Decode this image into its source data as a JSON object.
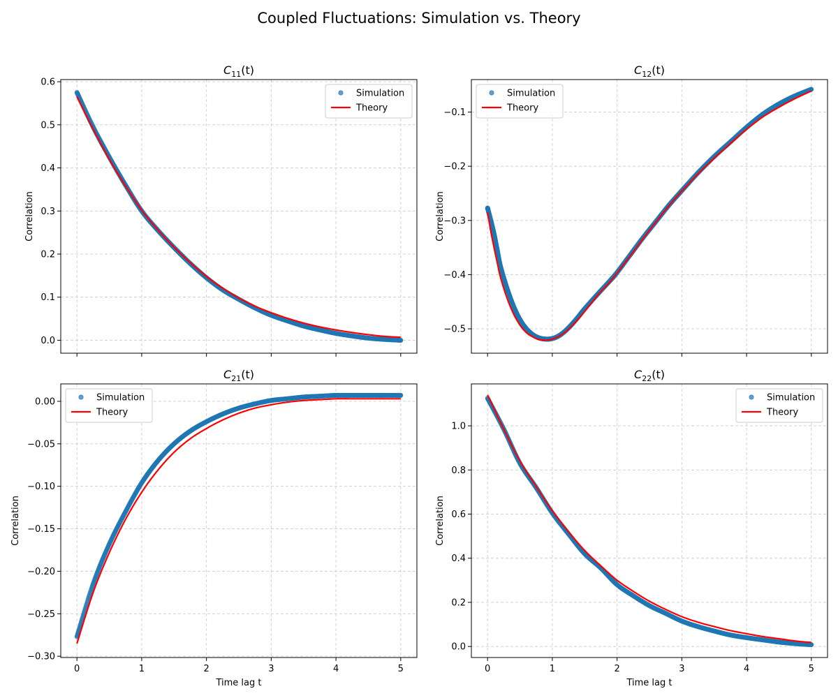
{
  "figure": {
    "title": "Coupled Fluctuations: Simulation vs. Theory"
  },
  "colors": {
    "simulation": "#1f77b4",
    "theory": "#ff0000",
    "grid": "#cccccc"
  },
  "chart_data": [
    {
      "type": "line",
      "title_main": "C",
      "title_sub": "11",
      "title_suffix": "(t)",
      "xlabel": "",
      "ylabel": "Correlation",
      "xlim": [
        -0.25,
        5.25
      ],
      "ylim": [
        -0.03,
        0.605
      ],
      "xticks": [
        0,
        1,
        2,
        3,
        4,
        5
      ],
      "yticks": [
        0.0,
        0.1,
        0.2,
        0.3,
        0.4,
        0.5,
        0.6
      ],
      "ytick_labels": [
        "0.0",
        "0.1",
        "0.2",
        "0.3",
        "0.4",
        "0.5",
        "0.6"
      ],
      "grid": true,
      "legend_position": "top-right",
      "series": [
        {
          "name": "Simulation",
          "style": "scatter",
          "x": [
            0,
            0.25,
            0.5,
            0.75,
            1.0,
            1.25,
            1.5,
            1.75,
            2.0,
            2.25,
            2.5,
            2.75,
            3.0,
            3.25,
            3.5,
            3.75,
            4.0,
            4.25,
            4.5,
            4.75,
            5.0
          ],
          "y": [
            0.575,
            0.495,
            0.425,
            0.36,
            0.3,
            0.255,
            0.215,
            0.178,
            0.145,
            0.117,
            0.095,
            0.075,
            0.058,
            0.045,
            0.033,
            0.024,
            0.016,
            0.01,
            0.005,
            0.002,
            0.0
          ]
        },
        {
          "name": "Theory",
          "style": "line",
          "x": [
            0,
            0.25,
            0.5,
            0.75,
            1.0,
            1.25,
            1.5,
            1.75,
            2.0,
            2.25,
            2.5,
            2.75,
            3.0,
            3.25,
            3.5,
            3.75,
            4.0,
            4.25,
            4.5,
            4.75,
            5.0
          ],
          "y": [
            0.565,
            0.49,
            0.42,
            0.358,
            0.302,
            0.256,
            0.216,
            0.18,
            0.148,
            0.121,
            0.098,
            0.079,
            0.064,
            0.051,
            0.04,
            0.031,
            0.024,
            0.018,
            0.013,
            0.009,
            0.007
          ]
        }
      ]
    },
    {
      "type": "line",
      "title_main": "C",
      "title_sub": "12",
      "title_suffix": "(t)",
      "xlabel": "",
      "ylabel": "Correlation",
      "xlim": [
        -0.25,
        5.25
      ],
      "ylim": [
        -0.545,
        -0.04
      ],
      "xticks": [
        0,
        1,
        2,
        3,
        4,
        5
      ],
      "yticks": [
        -0.5,
        -0.4,
        -0.3,
        -0.2,
        -0.1
      ],
      "ytick_labels": [
        "−0.5",
        "−0.4",
        "−0.3",
        "−0.2",
        "−0.1"
      ],
      "grid": true,
      "legend_position": "top-left",
      "series": [
        {
          "name": "Simulation",
          "style": "scatter",
          "x": [
            0,
            0.05,
            0.1,
            0.15,
            0.2,
            0.3,
            0.4,
            0.5,
            0.6,
            0.7,
            0.8,
            0.9,
            1.0,
            1.1,
            1.2,
            1.3,
            1.4,
            1.5,
            1.7,
            1.9,
            2.0,
            2.2,
            2.4,
            2.6,
            2.8,
            3.0,
            3.25,
            3.5,
            3.75,
            4.0,
            4.25,
            4.5,
            4.75,
            5.0
          ],
          "y": [
            -0.277,
            -0.3,
            -0.325,
            -0.355,
            -0.385,
            -0.425,
            -0.458,
            -0.483,
            -0.5,
            -0.511,
            -0.517,
            -0.519,
            -0.518,
            -0.513,
            -0.504,
            -0.492,
            -0.478,
            -0.463,
            -0.436,
            -0.41,
            -0.396,
            -0.364,
            -0.332,
            -0.302,
            -0.272,
            -0.245,
            -0.212,
            -0.182,
            -0.155,
            -0.128,
            -0.104,
            -0.085,
            -0.07,
            -0.058
          ]
        },
        {
          "name": "Theory",
          "style": "line",
          "x": [
            0,
            0.05,
            0.1,
            0.15,
            0.2,
            0.3,
            0.4,
            0.5,
            0.6,
            0.7,
            0.8,
            0.9,
            1.0,
            1.1,
            1.2,
            1.3,
            1.4,
            1.5,
            1.7,
            1.9,
            2.0,
            2.2,
            2.4,
            2.6,
            2.8,
            3.0,
            3.25,
            3.5,
            3.75,
            4.0,
            4.25,
            4.5,
            4.75,
            5.0
          ],
          "y": [
            -0.285,
            -0.32,
            -0.35,
            -0.378,
            -0.405,
            -0.443,
            -0.472,
            -0.493,
            -0.507,
            -0.515,
            -0.52,
            -0.521,
            -0.519,
            -0.514,
            -0.506,
            -0.495,
            -0.482,
            -0.468,
            -0.438,
            -0.412,
            -0.397,
            -0.366,
            -0.334,
            -0.303,
            -0.273,
            -0.246,
            -0.214,
            -0.185,
            -0.158,
            -0.132,
            -0.109,
            -0.091,
            -0.075,
            -0.061
          ]
        }
      ]
    },
    {
      "type": "line",
      "title_main": "C",
      "title_sub": "21",
      "title_suffix": "(t)",
      "xlabel": "Time lag t",
      "ylabel": "Correlation",
      "xlim": [
        -0.25,
        5.25
      ],
      "ylim": [
        -0.3015,
        0.0205
      ],
      "xticks": [
        0,
        1,
        2,
        3,
        4,
        5
      ],
      "yticks": [
        -0.3,
        -0.25,
        -0.2,
        -0.15,
        -0.1,
        -0.05,
        0.0
      ],
      "ytick_labels": [
        "−0.30",
        "−0.25",
        "−0.20",
        "−0.15",
        "−0.10",
        "−0.05",
        "0.00"
      ],
      "grid": true,
      "legend_position": "top-left",
      "series": [
        {
          "name": "Simulation",
          "style": "scatter",
          "x": [
            0,
            0.25,
            0.5,
            0.75,
            1.0,
            1.25,
            1.5,
            1.75,
            2.0,
            2.25,
            2.5,
            2.75,
            3.0,
            3.25,
            3.5,
            3.75,
            4.0,
            4.25,
            4.5,
            4.75,
            5.0
          ],
          "y": [
            -0.277,
            -0.215,
            -0.168,
            -0.13,
            -0.096,
            -0.07,
            -0.05,
            -0.035,
            -0.024,
            -0.015,
            -0.008,
            -0.003,
            0.001,
            0.003,
            0.005,
            0.006,
            0.007,
            0.007,
            0.007,
            0.007,
            0.007
          ]
        },
        {
          "name": "Theory",
          "style": "line",
          "x": [
            0,
            0.25,
            0.5,
            0.75,
            1.0,
            1.25,
            1.5,
            1.75,
            2.0,
            2.25,
            2.5,
            2.75,
            3.0,
            3.25,
            3.5,
            3.75,
            4.0,
            4.25,
            4.5,
            4.75,
            5.0
          ],
          "y": [
            -0.285,
            -0.225,
            -0.178,
            -0.139,
            -0.107,
            -0.081,
            -0.06,
            -0.044,
            -0.032,
            -0.022,
            -0.014,
            -0.008,
            -0.004,
            -0.001,
            0.001,
            0.002,
            0.003,
            0.003,
            0.003,
            0.003,
            0.003
          ]
        }
      ]
    },
    {
      "type": "line",
      "title_main": "C",
      "title_sub": "22",
      "title_suffix": "(t)",
      "xlabel": "Time lag t",
      "ylabel": "Correlation",
      "xlim": [
        -0.25,
        5.25
      ],
      "ylim": [
        -0.05,
        1.19
      ],
      "xticks": [
        0,
        1,
        2,
        3,
        4,
        5
      ],
      "yticks": [
        0.0,
        0.2,
        0.4,
        0.6,
        0.8,
        1.0
      ],
      "ytick_labels": [
        "0.0",
        "0.2",
        "0.4",
        "0.6",
        "0.8",
        "1.0"
      ],
      "grid": true,
      "legend_position": "top-right",
      "series": [
        {
          "name": "Simulation",
          "style": "scatter",
          "x": [
            0,
            0.25,
            0.5,
            0.75,
            1.0,
            1.25,
            1.5,
            1.75,
            2.0,
            2.25,
            2.5,
            2.75,
            3.0,
            3.25,
            3.5,
            3.75,
            4.0,
            4.25,
            4.5,
            4.75,
            5.0
          ],
          "y": [
            1.125,
            0.985,
            0.83,
            0.72,
            0.605,
            0.51,
            0.42,
            0.355,
            0.28,
            0.23,
            0.185,
            0.15,
            0.115,
            0.09,
            0.07,
            0.052,
            0.04,
            0.03,
            0.02,
            0.013,
            0.008
          ]
        },
        {
          "name": "Theory",
          "style": "line",
          "x": [
            0,
            0.25,
            0.5,
            0.75,
            1.0,
            1.25,
            1.5,
            1.75,
            2.0,
            2.25,
            2.5,
            2.75,
            3.0,
            3.25,
            3.5,
            3.75,
            4.0,
            4.25,
            4.5,
            4.75,
            5.0
          ],
          "y": [
            1.14,
            0.985,
            0.84,
            0.725,
            0.615,
            0.52,
            0.435,
            0.365,
            0.3,
            0.25,
            0.205,
            0.168,
            0.135,
            0.11,
            0.09,
            0.072,
            0.058,
            0.045,
            0.035,
            0.025,
            0.018
          ]
        }
      ]
    }
  ]
}
